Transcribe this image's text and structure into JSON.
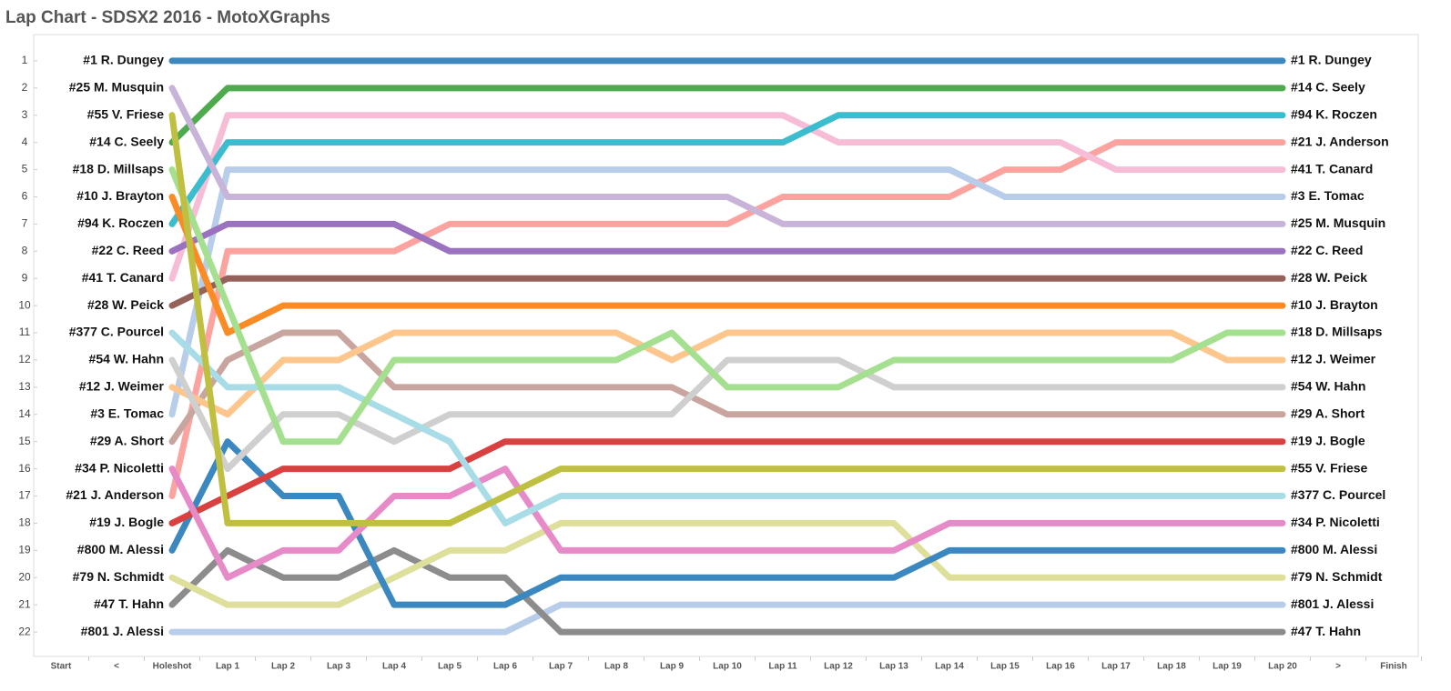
{
  "chart_data": {
    "type": "line",
    "title": "Lap Chart - SDSX2 2016 - MotoXGraphs",
    "categories": [
      "Start",
      "<",
      "Holeshot",
      "Lap 1",
      "Lap 2",
      "Lap 3",
      "Lap 4",
      "Lap 5",
      "Lap 6",
      "Lap 7",
      "Lap 8",
      "Lap 9",
      "Lap 10",
      "Lap 11",
      "Lap 12",
      "Lap 13",
      "Lap 14",
      "Lap 15",
      "Lap 16",
      "Lap 17",
      "Lap 18",
      "Lap 19",
      "Lap 20",
      ">",
      "Finish"
    ],
    "ylim": [
      0,
      23
    ],
    "y_inverted": true,
    "yticks": [
      1,
      2,
      3,
      4,
      5,
      6,
      7,
      8,
      9,
      10,
      11,
      12,
      13,
      14,
      15,
      16,
      17,
      18,
      19,
      20,
      21,
      22
    ],
    "series": [
      {
        "name": "#801 J. Alessi",
        "color": "#b8cde9",
        "values": [
          null,
          null,
          22,
          22,
          22,
          22,
          22,
          22,
          22,
          21,
          21,
          21,
          21,
          21,
          21,
          21,
          21,
          21,
          21,
          21,
          21,
          21,
          21,
          null,
          null
        ]
      },
      {
        "name": "#47 T. Hahn",
        "color": "#8c8c8c",
        "values": [
          null,
          null,
          21,
          19,
          20,
          20,
          19,
          20,
          20,
          22,
          22,
          22,
          22,
          22,
          22,
          22,
          22,
          22,
          22,
          22,
          22,
          22,
          22,
          null,
          null
        ]
      },
      {
        "name": "#79 N. Schmidt",
        "color": "#dfdf9c",
        "values": [
          null,
          null,
          20,
          21,
          21,
          21,
          20,
          19,
          19,
          18,
          18,
          18,
          18,
          18,
          18,
          18,
          20,
          20,
          20,
          20,
          20,
          20,
          20,
          null,
          null
        ]
      },
      {
        "name": "#800 M. Alessi",
        "color": "#3b88c0",
        "values": [
          null,
          null,
          19,
          15,
          17,
          17,
          21,
          21,
          21,
          20,
          20,
          20,
          20,
          20,
          20,
          20,
          19,
          19,
          19,
          19,
          19,
          19,
          19,
          null,
          null
        ]
      },
      {
        "name": "#19 J. Bogle",
        "color": "#d94040",
        "values": [
          null,
          null,
          18,
          17,
          16,
          16,
          16,
          16,
          15,
          15,
          15,
          15,
          15,
          15,
          15,
          15,
          15,
          15,
          15,
          15,
          15,
          15,
          15,
          null,
          null
        ]
      },
      {
        "name": "#21 J. Anderson",
        "color": "#fca3a0",
        "values": [
          null,
          null,
          17,
          8,
          8,
          8,
          8,
          7,
          7,
          7,
          7,
          7,
          7,
          6,
          6,
          6,
          6,
          5,
          5,
          4,
          4,
          4,
          4,
          null,
          null
        ]
      },
      {
        "name": "#34 P. Nicoletti",
        "color": "#e68ac8",
        "values": [
          null,
          null,
          16,
          20,
          19,
          19,
          17,
          17,
          16,
          19,
          19,
          19,
          19,
          19,
          19,
          19,
          18,
          18,
          18,
          18,
          18,
          18,
          18,
          null,
          null
        ]
      },
      {
        "name": "#29 A. Short",
        "color": "#c9a59f",
        "values": [
          null,
          null,
          15,
          12,
          11,
          11,
          13,
          13,
          13,
          13,
          13,
          13,
          14,
          14,
          14,
          14,
          14,
          14,
          14,
          14,
          14,
          14,
          14,
          null,
          null
        ]
      },
      {
        "name": "#3 E. Tomac",
        "color": "#b8cde9",
        "values": [
          null,
          null,
          14,
          5,
          5,
          5,
          5,
          5,
          5,
          5,
          5,
          5,
          5,
          5,
          5,
          5,
          5,
          6,
          6,
          6,
          6,
          6,
          6,
          null,
          null
        ]
      },
      {
        "name": "#12 J. Weimer",
        "color": "#fdc68c",
        "values": [
          null,
          null,
          13,
          14,
          12,
          12,
          11,
          11,
          11,
          11,
          11,
          12,
          11,
          11,
          11,
          11,
          11,
          11,
          11,
          11,
          11,
          12,
          12,
          null,
          null
        ]
      },
      {
        "name": "#54 W. Hahn",
        "color": "#cfcfcf",
        "values": [
          null,
          null,
          12,
          16,
          14,
          14,
          15,
          14,
          14,
          14,
          14,
          14,
          12,
          12,
          12,
          13,
          13,
          13,
          13,
          13,
          13,
          13,
          13,
          null,
          null
        ]
      },
      {
        "name": "#377 C. Pourcel",
        "color": "#a8dde8",
        "values": [
          null,
          null,
          11,
          13,
          13,
          13,
          14,
          15,
          18,
          17,
          17,
          17,
          17,
          17,
          17,
          17,
          17,
          17,
          17,
          17,
          17,
          17,
          17,
          null,
          null
        ]
      },
      {
        "name": "#28 W. Peick",
        "color": "#946259",
        "values": [
          null,
          null,
          10,
          9,
          9,
          9,
          9,
          9,
          9,
          9,
          9,
          9,
          9,
          9,
          9,
          9,
          9,
          9,
          9,
          9,
          9,
          9,
          9,
          null,
          null
        ]
      },
      {
        "name": "#41 T. Canard",
        "color": "#f7bcd6",
        "values": [
          null,
          null,
          9,
          3,
          3,
          3,
          3,
          3,
          3,
          3,
          3,
          3,
          3,
          3,
          4,
          4,
          4,
          4,
          4,
          5,
          5,
          5,
          5,
          null,
          null
        ]
      },
      {
        "name": "#22 C. Reed",
        "color": "#9a72c0",
        "values": [
          null,
          null,
          8,
          7,
          7,
          7,
          7,
          8,
          8,
          8,
          8,
          8,
          8,
          8,
          8,
          8,
          8,
          8,
          8,
          8,
          8,
          8,
          8,
          null,
          null
        ]
      },
      {
        "name": "#94 K. Roczen",
        "color": "#3cbccf",
        "values": [
          null,
          null,
          7,
          4,
          4,
          4,
          4,
          4,
          4,
          4,
          4,
          4,
          4,
          4,
          3,
          3,
          3,
          3,
          3,
          3,
          3,
          3,
          3,
          null,
          null
        ]
      },
      {
        "name": "#10 J. Brayton",
        "color": "#fb8b24",
        "values": [
          null,
          null,
          6,
          11,
          10,
          10,
          10,
          10,
          10,
          10,
          10,
          10,
          10,
          10,
          10,
          10,
          10,
          10,
          10,
          10,
          10,
          10,
          10,
          null,
          null
        ]
      },
      {
        "name": "#18 D. Millsaps",
        "color": "#a4e08f",
        "values": [
          null,
          null,
          5,
          10,
          15,
          15,
          12,
          12,
          12,
          12,
          12,
          11,
          13,
          13,
          13,
          12,
          12,
          12,
          12,
          12,
          12,
          11,
          11,
          null,
          null
        ]
      },
      {
        "name": "#14 C. Seely",
        "color": "#4daa4d",
        "values": [
          null,
          null,
          4,
          2,
          2,
          2,
          2,
          2,
          2,
          2,
          2,
          2,
          2,
          2,
          2,
          2,
          2,
          2,
          2,
          2,
          2,
          2,
          2,
          null,
          null
        ]
      },
      {
        "name": "#55 V. Friese",
        "color": "#bfc042",
        "values": [
          null,
          null,
          3,
          18,
          18,
          18,
          18,
          18,
          17,
          16,
          16,
          16,
          16,
          16,
          16,
          16,
          16,
          16,
          16,
          16,
          16,
          16,
          16,
          null,
          null
        ]
      },
      {
        "name": "#25 M. Musquin",
        "color": "#c7b4d8",
        "values": [
          null,
          null,
          2,
          6,
          6,
          6,
          6,
          6,
          6,
          6,
          6,
          6,
          6,
          7,
          7,
          7,
          7,
          7,
          7,
          7,
          7,
          7,
          7,
          null,
          null
        ]
      },
      {
        "name": "#1 R. Dungey",
        "color": "#3d87bd",
        "values": [
          null,
          null,
          1,
          1,
          1,
          1,
          1,
          1,
          1,
          1,
          1,
          1,
          1,
          1,
          1,
          1,
          1,
          1,
          1,
          1,
          1,
          1,
          1,
          null,
          null
        ]
      }
    ]
  }
}
